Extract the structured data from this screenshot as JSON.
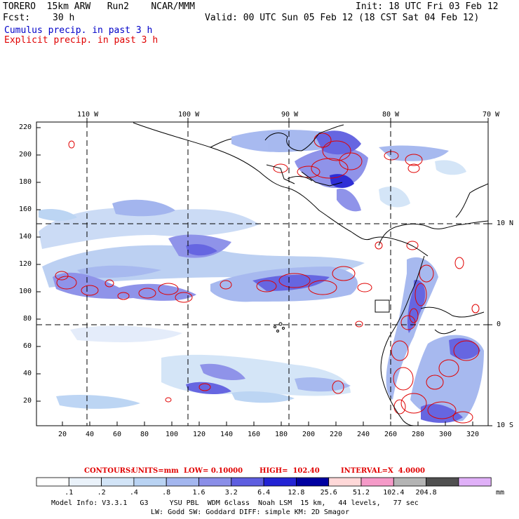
{
  "header": {
    "model": "TORERO  15km ARW   Run2    NCAR/MMM",
    "init": "Init: 18 UTC Fri 03 Feb 12",
    "fcst_label": "Fcst:",
    "fcst_hours": "30 h",
    "valid": "Valid: 00 UTC Sun 05 Feb 12 (18 CST Sat 04 Feb 12)",
    "cumulus": "Cumulus precip. in past 3 h",
    "explicit": "Explicit precip. in past 3 h"
  },
  "axes": {
    "lon_top": [
      "110 W",
      "100 W",
      "90 W",
      "80 W",
      "70 W"
    ],
    "lat_right": [
      "10 N",
      "0",
      "10 S"
    ],
    "y_ticks": [
      "220",
      "200",
      "180",
      "160",
      "140",
      "120",
      "100",
      "80",
      "60",
      "40",
      "20"
    ],
    "x_ticks": [
      "20",
      "40",
      "60",
      "80",
      "100",
      "120",
      "140",
      "160",
      "180",
      "200",
      "220",
      "240",
      "260",
      "280",
      "300",
      "320"
    ]
  },
  "contour_info": {
    "label": "CONTOURS:",
    "units": "UNITS=mm",
    "low": "LOW= 0.10000",
    "high": "HIGH=  102.40",
    "interval": "INTERVAL=X  4.0000"
  },
  "colorbar": {
    "labels": [
      ".1",
      ".2",
      ".4",
      ".8",
      "1.6",
      "3.2",
      "6.4",
      "12.8",
      "25.6",
      "51.2",
      "102.4",
      "204.8"
    ],
    "unit": "mm",
    "colors": [
      "#ffffff",
      "#eaf2fa",
      "#d2e4f7",
      "#b9d3f3",
      "#a3b6ef",
      "#8a8ee8",
      "#5e5ee0",
      "#2323d4",
      "#0000a0",
      "#ffd8d8",
      "#f59ac8",
      "#b4b4b4",
      "#505050",
      "#e0b0f8"
    ]
  },
  "footer": {
    "line1": "Model Info: V3.3.1   G3     YSU PBL  WDM 6class  Noah LSM  15 km,   44 levels,   77 sec",
    "line2": "LW: Godd SW: Goddard DIFF: simple KM: 2D Smagor"
  }
}
